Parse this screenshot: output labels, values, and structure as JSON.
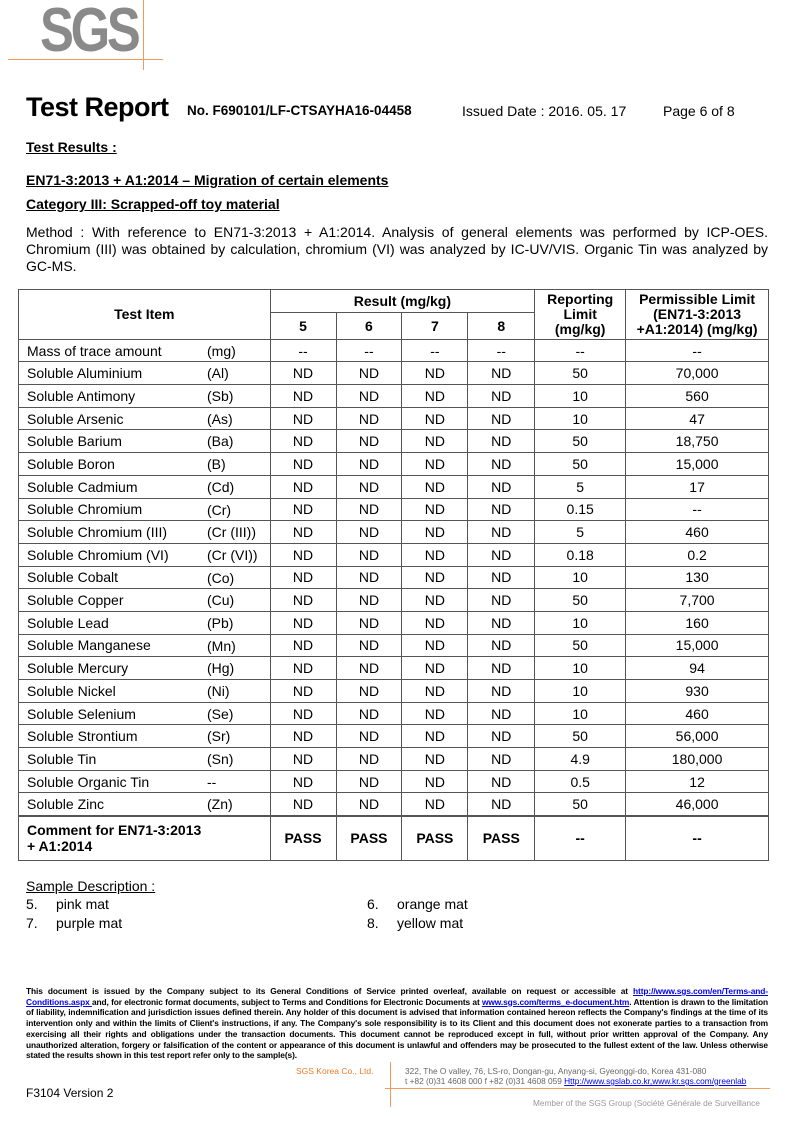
{
  "logo": "SGS",
  "header": {
    "title": "Test Report",
    "report_no": "No. F690101/LF-CTSAYHA16-04458",
    "issued": "Issued Date : 2016. 05. 17",
    "page": "Page 6 of 8"
  },
  "section": {
    "heading": "Test Results :",
    "standard": "EN71-3:2013 + A1:2014 – Migration of certain elements",
    "category": "Category III: Scrapped-off toy material",
    "method": "Method : With reference to EN71-3:2013 + A1:2014. Analysis of general elements was performed by ICP-OES. Chromium (III) was obtained by calculation, chromium (VI) was analyzed by IC-UV/VIS. Organic Tin was analyzed by GC-MS."
  },
  "table": {
    "headers": {
      "test_item": "Test Item",
      "result": "Result (mg/kg)",
      "samples": [
        "5",
        "6",
        "7",
        "8"
      ],
      "rl": "Reporting Limit (mg/kg)",
      "pl": "Permissible Limit (EN71-3:2013 +A1:2014) (mg/kg)"
    },
    "rows": [
      [
        "Mass of trace amount",
        "(mg)",
        "--",
        "--",
        "--",
        "--",
        "--",
        "--"
      ],
      [
        "Soluble Aluminium",
        "(Al)",
        "ND",
        "ND",
        "ND",
        "ND",
        "50",
        "70,000"
      ],
      [
        "Soluble Antimony",
        "(Sb)",
        "ND",
        "ND",
        "ND",
        "ND",
        "10",
        "560"
      ],
      [
        "Soluble Arsenic",
        "(As)",
        "ND",
        "ND",
        "ND",
        "ND",
        "10",
        "47"
      ],
      [
        "Soluble Barium",
        "(Ba)",
        "ND",
        "ND",
        "ND",
        "ND",
        "50",
        "18,750"
      ],
      [
        "Soluble Boron",
        "(B)",
        "ND",
        "ND",
        "ND",
        "ND",
        "50",
        "15,000"
      ],
      [
        "Soluble Cadmium",
        "(Cd)",
        "ND",
        "ND",
        "ND",
        "ND",
        "5",
        "17"
      ],
      [
        "Soluble Chromium",
        "(Cr)",
        "ND",
        "ND",
        "ND",
        "ND",
        "0.15",
        "--"
      ],
      [
        "Soluble Chromium (III)",
        "(Cr (III))",
        "ND",
        "ND",
        "ND",
        "ND",
        "5",
        "460"
      ],
      [
        "Soluble Chromium (VI)",
        "(Cr (VI))",
        "ND",
        "ND",
        "ND",
        "ND",
        "0.18",
        "0.2"
      ],
      [
        "Soluble Cobalt",
        "(Co)",
        "ND",
        "ND",
        "ND",
        "ND",
        "10",
        "130"
      ],
      [
        "Soluble Copper",
        "(Cu)",
        "ND",
        "ND",
        "ND",
        "ND",
        "50",
        "7,700"
      ],
      [
        "Soluble Lead",
        "(Pb)",
        "ND",
        "ND",
        "ND",
        "ND",
        "10",
        "160"
      ],
      [
        "Soluble Manganese",
        "(Mn)",
        "ND",
        "ND",
        "ND",
        "ND",
        "50",
        "15,000"
      ],
      [
        "Soluble Mercury",
        "(Hg)",
        "ND",
        "ND",
        "ND",
        "ND",
        "10",
        "94"
      ],
      [
        "Soluble Nickel",
        "(Ni)",
        "ND",
        "ND",
        "ND",
        "ND",
        "10",
        "930"
      ],
      [
        "Soluble Selenium",
        "(Se)",
        "ND",
        "ND",
        "ND",
        "ND",
        "10",
        "460"
      ],
      [
        "Soluble Strontium",
        "(Sr)",
        "ND",
        "ND",
        "ND",
        "ND",
        "50",
        "56,000"
      ],
      [
        "Soluble Tin",
        "(Sn)",
        "ND",
        "ND",
        "ND",
        "ND",
        "4.9",
        "180,000"
      ],
      [
        "Soluble Organic Tin",
        "--",
        "ND",
        "ND",
        "ND",
        "ND",
        "0.5",
        "12"
      ],
      [
        "Soluble Zinc",
        "(Zn)",
        "ND",
        "ND",
        "ND",
        "ND",
        "50",
        "46,000"
      ]
    ],
    "comment": {
      "label": "Comment for EN71-3:2013 + A1:2014",
      "values": [
        "PASS",
        "PASS",
        "PASS",
        "PASS",
        "--",
        "--"
      ]
    }
  },
  "samples": {
    "heading": "Sample Description :",
    "items": [
      [
        "5.",
        "pink mat"
      ],
      [
        "6.",
        "orange mat"
      ],
      [
        "7.",
        "purple mat"
      ],
      [
        "8.",
        "yellow mat"
      ]
    ]
  },
  "footer": {
    "disc1": "This document is issued by the Company subject to its General Conditions of Service printed overleaf, available on request or accessible at ",
    "link1": "http://www.sgs.com/en/Terms-and-Conditions.aspx ",
    "disc2": "and, for electronic format documents, subject to Terms and Conditions for Electronic Documents at ",
    "link2": "www.sgs.com/terms_e-document.htm",
    "disc3": ". Attention is drawn to the limitation of liability, indemnification and jurisdiction issues defined therein. Any holder of this document is advised that information contained hereon reflects the Company's findings at the time of its intervention only and within the limits of Client's instructions, if any. The Company's sole responsibility is to its Client and this document does not exonerate parties to a transaction from exercising all their rights and obligations under the transaction documents. This document cannot be reproduced except in full, without prior written approval of the Company. Any unauthorized alteration, forgery or falsification of the content or appearance of this document is unlawful and offenders may be prosecuted to the fullest extent of the law.   Unless otherwise stated the results shown in this test report refer only to the sample(s).",
    "company": "SGS Korea Co., Ltd.",
    "address": "322, The O valley, 76, LS-ro, Dongan-gu, Anyang-si, Gyeonggi-do, Korea 431-080",
    "phone": "t +82 (0)31 4608 000 f +82 (0)31 4608 059 ",
    "link3": "Http://www.sgslab.co.kr,www.kr.sgs.com/greenlab",
    "version": "F3104 Version 2",
    "member": "Member of the SGS Group (Société Générale de Surveillance"
  }
}
